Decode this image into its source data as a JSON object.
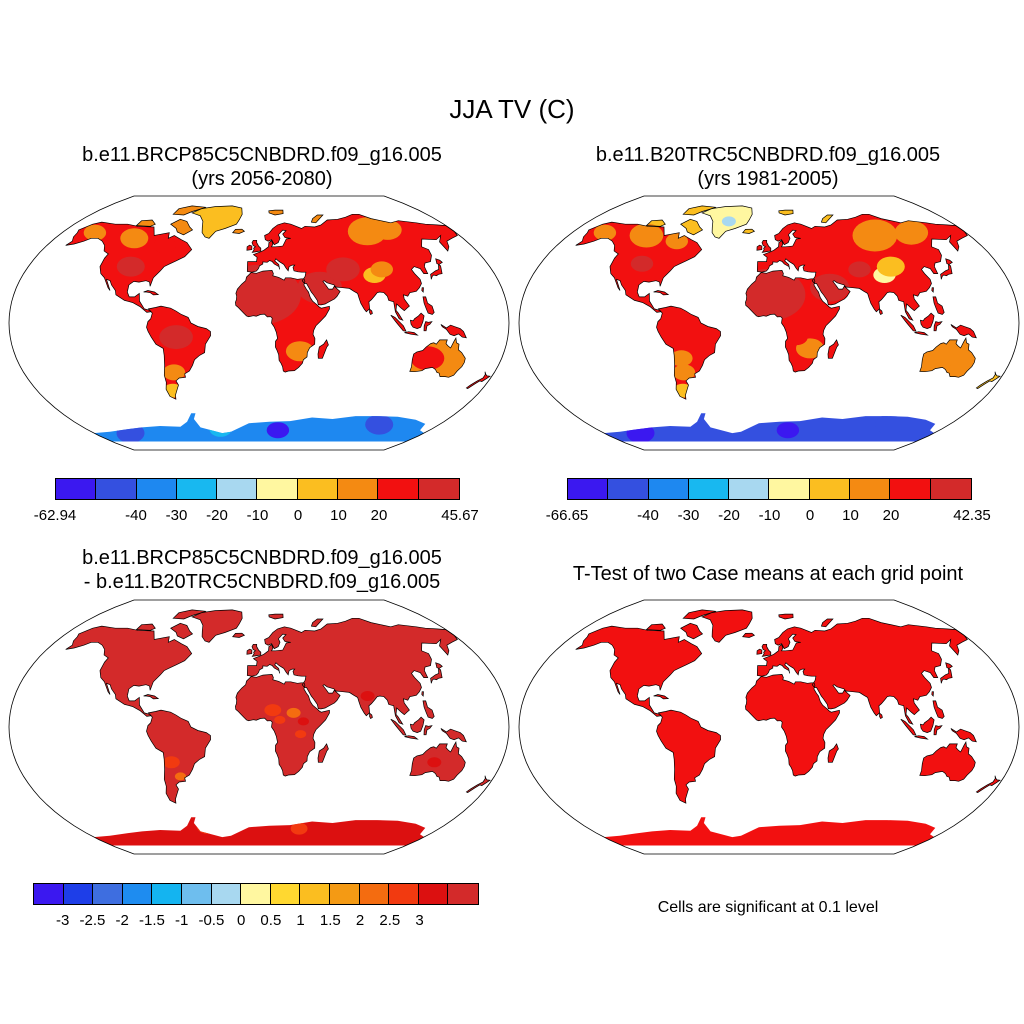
{
  "title": "JJA TV (C)",
  "colors": {
    "ocean": "#ffffff",
    "outline": "#000000",
    "abs_palette": [
      "#3b18f0",
      "#3450e0",
      "#1e88f0",
      "#18b8f0",
      "#a8d8f0",
      "#fff7a0",
      "#fbbe20",
      "#f48a12",
      "#f21010",
      "#d32a2a"
    ],
    "diff_palette": [
      "#3b18f0",
      "#1e3ee8",
      "#3e6ee0",
      "#1e8cf0",
      "#14b4f0",
      "#6ebeee",
      "#a8d8f0",
      "#fff7a0",
      "#ffd830",
      "#fbbe20",
      "#f49a14",
      "#f46c10",
      "#f23a10",
      "#dc1010",
      "#d32a2a"
    ],
    "ttest": "#f21010"
  },
  "panels": {
    "top_left": {
      "title_line1": "b.e11.BRCP85C5CNBDRD.f09_g16.005",
      "title_line2": "(yrs 2056-2080)",
      "colorbar_min": "-62.94",
      "colorbar_max": "45.67",
      "colorbar_ticks": [
        "-40",
        "-30",
        "-20",
        "-10",
        "0",
        "10",
        "20"
      ]
    },
    "top_right": {
      "title_line1": "b.e11.B20TRC5CNBDRD.f09_g16.005",
      "title_line2": "(yrs 1981-2005)",
      "colorbar_min": "-66.65",
      "colorbar_max": "42.35",
      "colorbar_ticks": [
        "-40",
        "-30",
        "-20",
        "-10",
        "0",
        "10",
        "20"
      ]
    },
    "bottom_left": {
      "title_line1": "b.e11.BRCP85C5CNBDRD.f09_g16.005",
      "title_line2": "- b.e11.B20TRC5CNBDRD.f09_g16.005",
      "colorbar_ticks": [
        "-3",
        "-2.5",
        "-2",
        "-1.5",
        "-1",
        "-0.5",
        "0",
        "0.5",
        "1",
        "1.5",
        "2",
        "2.5",
        "3"
      ]
    },
    "bottom_right": {
      "title": "T-Test of two Case means at each grid point",
      "note": "Cells are significant at 0.1 level"
    }
  }
}
